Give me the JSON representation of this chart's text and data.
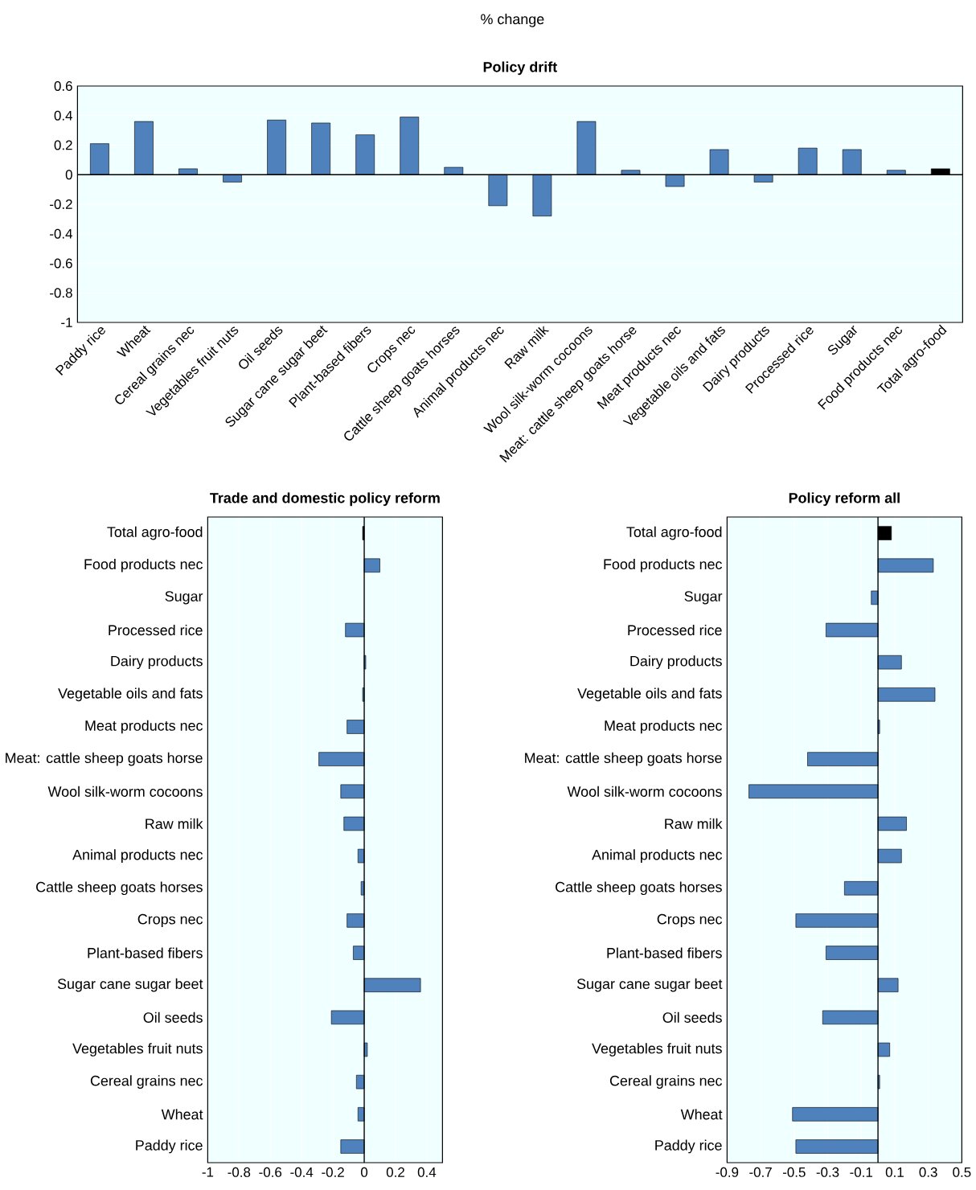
{
  "chart_data": [
    {
      "type": "bar",
      "title": "Policy drift",
      "annotations": [
        "% change"
      ],
      "categories": [
        "Paddy rice",
        "Wheat",
        "Cereal grains nec",
        "Vegetables fruit nuts",
        "Oil seeds",
        "Sugar cane sugar beet",
        "Plant-based fibers",
        "Crops nec",
        "Cattle sheep goats horses",
        "Animal products nec",
        "Raw milk",
        "Wool silk-worm cocoons",
        "Meat: cattle sheep goats horse",
        "Meat products nec",
        "Vegetable oils and fats",
        "Dairy products",
        "Processed rice",
        "Sugar",
        "Food products nec",
        "Total agro-food"
      ],
      "values": [
        0.21,
        0.36,
        0.04,
        -0.05,
        0.37,
        0.35,
        0.27,
        0.39,
        0.05,
        -0.21,
        -0.28,
        0.36,
        0.03,
        -0.08,
        0.17,
        -0.05,
        0.18,
        0.17,
        0.03,
        0.04
      ],
      "colors": [
        "#4f81bd",
        "#4f81bd",
        "#4f81bd",
        "#4f81bd",
        "#4f81bd",
        "#4f81bd",
        "#4f81bd",
        "#4f81bd",
        "#4f81bd",
        "#4f81bd",
        "#4f81bd",
        "#4f81bd",
        "#4f81bd",
        "#4f81bd",
        "#4f81bd",
        "#4f81bd",
        "#4f81bd",
        "#4f81bd",
        "#4f81bd",
        "#000000"
      ],
      "ylim": [
        -1,
        0.6
      ],
      "yticks": [
        -1,
        -0.8,
        -0.6,
        -0.4,
        -0.2,
        0,
        0.2,
        0.4,
        0.6
      ],
      "grid": "y"
    },
    {
      "type": "bar",
      "orientation": "horizontal",
      "title": "Trade and domestic policy reform",
      "categories": [
        "Total agro-food",
        "Food products nec",
        "Sugar",
        "Processed rice",
        "Dairy products",
        "Vegetable oils and fats",
        "Meat products nec",
        "Meat: cattle sheep goats horse",
        "Wool silk-worm cocoons",
        "Raw milk",
        "Animal products nec",
        "Cattle sheep goats horses",
        "Crops nec",
        "Plant-based fibers",
        "Sugar cane sugar beet",
        "Oil seeds",
        "Vegetables fruit nuts",
        "Cereal grains nec",
        "Wheat",
        "Paddy rice"
      ],
      "values": [
        -0.01,
        0.1,
        0,
        -0.12,
        0.01,
        -0.01,
        -0.11,
        -0.29,
        -0.15,
        -0.13,
        -0.04,
        -0.02,
        -0.11,
        -0.07,
        0.36,
        -0.21,
        0.02,
        -0.05,
        -0.04,
        -0.15
      ],
      "colors": [
        "#000000",
        "#4f81bd",
        "#4f81bd",
        "#4f81bd",
        "#4f81bd",
        "#4f81bd",
        "#4f81bd",
        "#4f81bd",
        "#4f81bd",
        "#4f81bd",
        "#4f81bd",
        "#4f81bd",
        "#4f81bd",
        "#4f81bd",
        "#4f81bd",
        "#4f81bd",
        "#4f81bd",
        "#4f81bd",
        "#4f81bd",
        "#4f81bd"
      ],
      "xlim": [
        -1,
        0.5
      ],
      "xticks": [
        -1,
        -0.8,
        -0.6,
        -0.4,
        -0.2,
        0,
        0.2,
        0.4
      ],
      "grid": "x"
    },
    {
      "type": "bar",
      "orientation": "horizontal",
      "title": "Policy reform all",
      "categories": [
        "Total agro-food",
        "Food products nec",
        "Sugar",
        "Processed rice",
        "Dairy products",
        "Vegetable oils and fats",
        "Meat products nec",
        "Meat: cattle sheep goats horse",
        "Wool silk-worm cocoons",
        "Raw milk",
        "Animal products nec",
        "Cattle sheep goats horses",
        "Crops nec",
        "Plant-based fibers",
        "Sugar cane sugar beet",
        "Oil seeds",
        "Vegetables fruit nuts",
        "Cereal grains nec",
        "Wheat",
        "Paddy rice"
      ],
      "values": [
        0.08,
        0.33,
        -0.04,
        -0.31,
        0.14,
        0.34,
        0.01,
        -0.42,
        -0.77,
        0.17,
        0.14,
        -0.2,
        -0.49,
        -0.31,
        0.12,
        -0.33,
        0.07,
        0.01,
        -0.51,
        -0.49
      ],
      "colors": [
        "#000000",
        "#4f81bd",
        "#4f81bd",
        "#4f81bd",
        "#4f81bd",
        "#4f81bd",
        "#4f81bd",
        "#4f81bd",
        "#4f81bd",
        "#4f81bd",
        "#4f81bd",
        "#4f81bd",
        "#4f81bd",
        "#4f81bd",
        "#4f81bd",
        "#4f81bd",
        "#4f81bd",
        "#4f81bd",
        "#4f81bd",
        "#4f81bd"
      ],
      "xlim": [
        -0.9,
        0.5
      ],
      "xticks": [
        -0.9,
        -0.7,
        -0.5,
        -0.3,
        -0.1,
        0.1,
        0.3,
        0.5
      ],
      "grid": "x"
    }
  ]
}
